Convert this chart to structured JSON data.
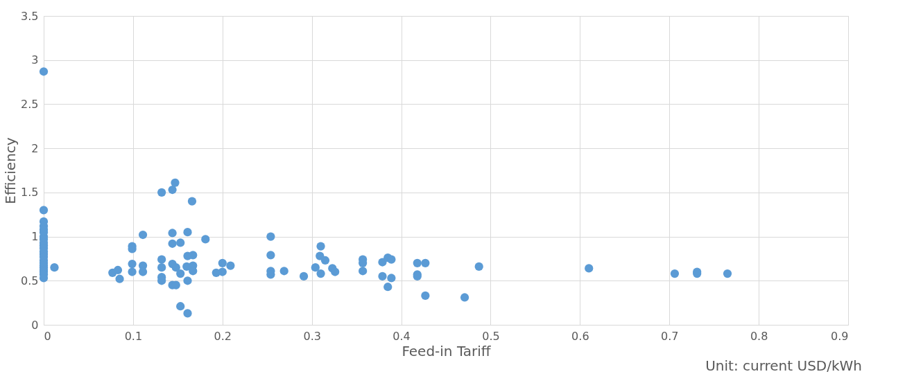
{
  "chart_data": {
    "type": "scatter",
    "xlabel": "Feed-in Tariff",
    "ylabel": "Efficiency",
    "annotations": [
      "Unit: current USD/kWh"
    ],
    "xlim": [
      0,
      0.9
    ],
    "xticks": [
      0,
      0.1,
      0.2,
      0.3,
      0.4,
      0.5,
      0.6,
      0.7,
      0.8,
      0.9
    ],
    "ylim": [
      0,
      3.5
    ],
    "yticks": [
      0,
      0.5,
      1,
      1.5,
      2,
      2.5,
      3,
      3.5
    ],
    "grid": true,
    "marker": "circle",
    "series": [
      {
        "color": "#5b9bd5",
        "x": [
          0,
          0,
          0,
          0,
          0,
          0,
          0,
          0,
          0,
          0,
          0,
          0,
          0,
          0,
          0,
          0,
          0,
          0,
          0,
          0,
          0,
          0,
          0.012,
          0.077,
          0.083,
          0.085,
          0.099,
          0.099,
          0.099,
          0.099,
          0.111,
          0.111,
          0.111,
          0.147,
          0.144,
          0.132,
          0.166,
          0.144,
          0.161,
          0.144,
          0.153,
          0.181,
          0.132,
          0.132,
          0.132,
          0.132,
          0.144,
          0.148,
          0.153,
          0.161,
          0.167,
          0.167,
          0.167,
          0.16,
          0.144,
          0.148,
          0.161,
          0.153,
          0.161,
          0.2,
          0.209,
          0.193,
          0.2,
          0.254,
          0.254,
          0.254,
          0.254,
          0.269,
          0.291,
          0.31,
          0.309,
          0.315,
          0.304,
          0.31,
          0.323,
          0.326,
          0.357,
          0.357,
          0.357,
          0.379,
          0.385,
          0.389,
          0.379,
          0.389,
          0.385,
          0.418,
          0.427,
          0.418,
          0.418,
          0.427,
          0.471,
          0.487,
          0.61,
          0.706,
          0.731,
          0.731,
          0.765
        ],
        "values": [
          2.87,
          1.3,
          1.17,
          1.12,
          1.08,
          1.05,
          1.0,
          0.97,
          0.93,
          0.9,
          0.87,
          0.83,
          0.8,
          0.77,
          0.73,
          0.7,
          0.67,
          0.65,
          0.62,
          0.6,
          0.57,
          0.53,
          0.65,
          0.59,
          0.62,
          0.52,
          0.89,
          0.86,
          0.69,
          0.6,
          1.02,
          0.67,
          0.6,
          1.61,
          1.53,
          1.5,
          1.4,
          1.04,
          1.05,
          0.92,
          0.93,
          0.97,
          0.74,
          0.65,
          0.54,
          0.5,
          0.69,
          0.65,
          0.58,
          0.78,
          0.79,
          0.67,
          0.61,
          0.66,
          0.45,
          0.45,
          0.5,
          0.21,
          0.13,
          0.7,
          0.67,
          0.59,
          0.6,
          1.0,
          0.79,
          0.61,
          0.57,
          0.61,
          0.55,
          0.89,
          0.78,
          0.73,
          0.65,
          0.58,
          0.64,
          0.6,
          0.74,
          0.7,
          0.61,
          0.71,
          0.76,
          0.74,
          0.55,
          0.53,
          0.43,
          0.7,
          0.7,
          0.57,
          0.55,
          0.33,
          0.31,
          0.66,
          0.64,
          0.58,
          0.6,
          0.58,
          0.58
        ]
      }
    ]
  }
}
